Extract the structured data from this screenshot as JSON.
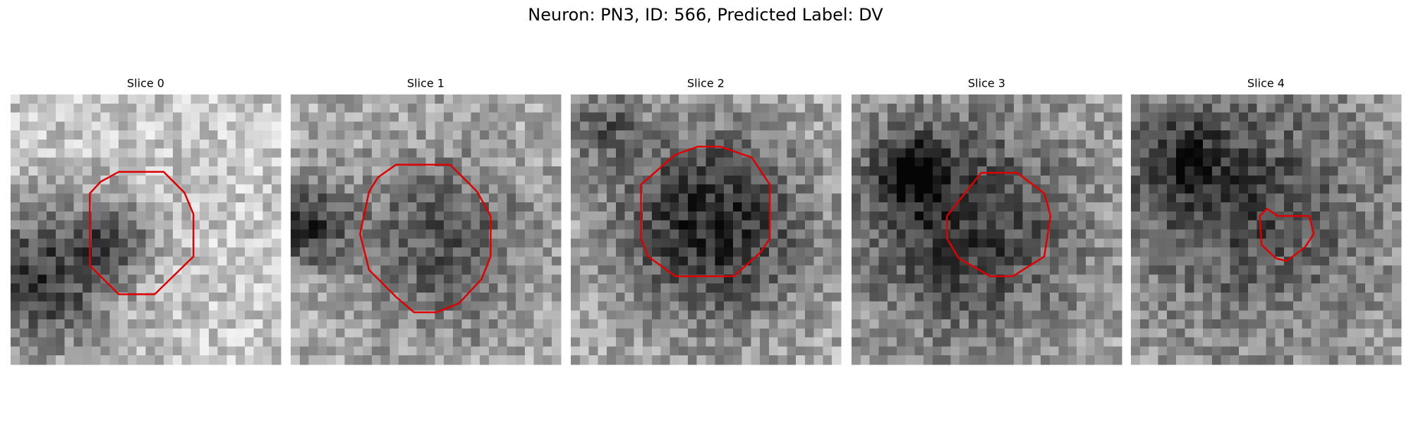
{
  "title": "Neuron: PN3, ID: 566, Predicted Label: DV",
  "panels": [
    {
      "title": "Slice 0"
    },
    {
      "title": "Slice 1"
    },
    {
      "title": "Slice 2"
    },
    {
      "title": "Slice 3"
    },
    {
      "title": "Slice 4"
    }
  ]
}
